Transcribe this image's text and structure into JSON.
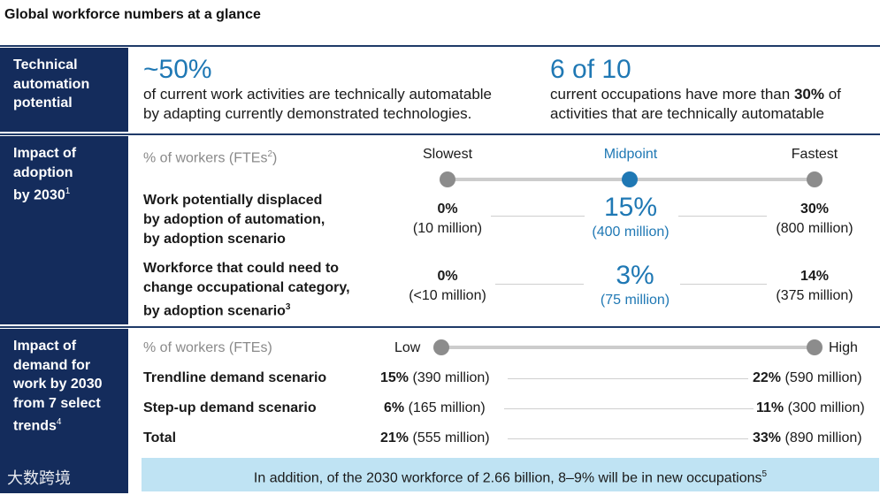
{
  "title": "Global workforce numbers at a glance",
  "sections": {
    "automation": {
      "label": "Technical automation potential",
      "stat1": {
        "value": "~50%",
        "line1": "of current work activities are technically automatable",
        "line2": "by adapting currently demonstrated technologies."
      },
      "stat2": {
        "value": "6 of 10",
        "line1_pre": "current occupations have more than ",
        "line1_bold": "30%",
        "line1_post": " of",
        "line2": "activities that are technically automatable"
      }
    },
    "adoption": {
      "label_line1": "Impact of",
      "label_line2": "adoption",
      "label_line3": "by 2030",
      "label_sup": "1",
      "header_pre": "% of workers (FTEs",
      "header_sup": "2",
      "header_post": ")",
      "scenario_slowest": "Slowest",
      "scenario_midpoint": "Midpoint",
      "scenario_fastest": "Fastest",
      "rows": [
        {
          "label_line1": "Work potentially displaced",
          "label_line2": "by adoption of automation,",
          "label_line3": "by adoption scenario",
          "label_sup": "",
          "slowest_pct": "0%",
          "slowest_abs": "(10 million)",
          "mid_pct": "15%",
          "mid_abs": "(400 million)",
          "fastest_pct": "30%",
          "fastest_abs": "(800 million)"
        },
        {
          "label_line1": "Workforce that could need to",
          "label_line2": "change occupational category,",
          "label_line3": "by adoption scenario",
          "label_sup": "3",
          "slowest_pct": "0%",
          "slowest_abs": "(<10 million)",
          "mid_pct": "3%",
          "mid_abs": "(75 million)",
          "fastest_pct": "14%",
          "fastest_abs": "(375 million)"
        }
      ]
    },
    "demand": {
      "label_line1": "Impact of",
      "label_line2": "demand for",
      "label_line3": "work by 2030",
      "label_line4": "from 7 select",
      "label_line5": "trends",
      "label_sup": "4",
      "header": "% of workers (FTEs)",
      "low_label": "Low",
      "high_label": "High",
      "rows": [
        {
          "label": "Trendline demand scenario",
          "low_pct": "15%",
          "low_abs": "(390 million)",
          "high_pct": "22%",
          "high_abs": "(590 million)"
        },
        {
          "label": "Step-up demand scenario",
          "low_pct": "6%",
          "low_abs": "(165 million)",
          "high_pct": "11%",
          "high_abs": "(300 million)"
        },
        {
          "label": "Total",
          "low_pct": "21%",
          "low_abs": "(555 million)",
          "high_pct": "33%",
          "high_abs": "(890 million)"
        }
      ],
      "note_text": "In addition, of the 2030 workforce of 2.66 billion, 8–9% will be in new occupations",
      "note_sup": "5"
    }
  },
  "watermark": "大数跨境",
  "colors": {
    "navy": "#142c5c",
    "accent_blue": "#1f78b4",
    "note_bg": "#bfe3f3"
  }
}
